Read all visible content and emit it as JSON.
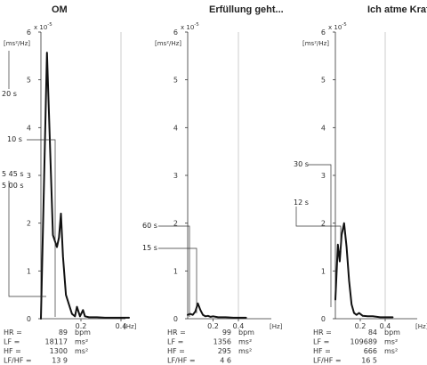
{
  "chart_data": [
    {
      "type": "line",
      "title": "OM",
      "y_exponent": "x 10",
      "y_exponent_power": "-5",
      "ylabel": "[ms²/Hz]",
      "xunit": "[Hz]",
      "ylim": [
        0,
        6
      ],
      "y_ticks": [
        "0",
        "1",
        "2",
        "3",
        "4",
        "5",
        "6"
      ],
      "x_ticks": [
        "0.2",
        "0.4"
      ],
      "series": [
        {
          "x": [
            0.0,
            0.03,
            0.06,
            0.08,
            0.09,
            0.1,
            0.11,
            0.125,
            0.14,
            0.155,
            0.17,
            0.18,
            0.195,
            0.21,
            0.22,
            0.24,
            0.28,
            0.32,
            0.36,
            0.4,
            0.44
          ],
          "y": [
            0.0,
            5.57,
            1.75,
            1.5,
            1.7,
            2.2,
            1.3,
            0.5,
            0.3,
            0.1,
            0.05,
            0.25,
            0.05,
            0.18,
            0.05,
            0.03,
            0.03,
            0.02,
            0.02,
            0.02,
            0.02
          ]
        }
      ],
      "annotations": [
        "20 s",
        "10 s",
        "5 45 s",
        "5 00 s"
      ],
      "stats": [
        {
          "label": "HR =",
          "value": "89",
          "unit": "bpm"
        },
        {
          "label": "LF =",
          "value": "18117",
          "unit": "ms²"
        },
        {
          "label": "HF =",
          "value": "1300",
          "unit": "ms²"
        },
        {
          "label": "LF/HF =",
          "value": "13 9",
          "unit": ""
        }
      ]
    },
    {
      "type": "line",
      "title": "Erfüllung geht...",
      "y_exponent": "x 10",
      "y_exponent_power": "-5",
      "ylabel": "[ms²/Hz]",
      "xunit": "[Hz]",
      "ylim": [
        0,
        6
      ],
      "y_ticks": [
        "0",
        "1",
        "2",
        "3",
        "4",
        "5",
        "6"
      ],
      "x_ticks": [
        "0.2",
        "0.4"
      ],
      "series": [
        {
          "x": [
            0.0,
            0.02,
            0.04,
            0.06,
            0.08,
            0.1,
            0.12,
            0.14,
            0.16,
            0.18,
            0.2,
            0.24,
            0.3,
            0.36,
            0.42,
            0.46
          ],
          "y": [
            0.08,
            0.1,
            0.08,
            0.15,
            0.32,
            0.18,
            0.08,
            0.05,
            0.06,
            0.04,
            0.05,
            0.03,
            0.03,
            0.02,
            0.02,
            0.02
          ]
        }
      ],
      "annotations": [
        "60 s",
        "15 s"
      ],
      "stats": [
        {
          "label": "HR =",
          "value": "99",
          "unit": "bpm"
        },
        {
          "label": "LF =",
          "value": "1356",
          "unit": "ms²"
        },
        {
          "label": "HF =",
          "value": "295",
          "unit": "ms²"
        },
        {
          "label": "LF/HF =",
          "value": "4 6",
          "unit": ""
        }
      ]
    },
    {
      "type": "line",
      "title": "Ich atme Kraft...",
      "y_exponent": "x 10",
      "y_exponent_power": "-5",
      "ylabel": "[ms²/Hz]",
      "xunit": "[Hz]",
      "ylim": [
        0,
        6
      ],
      "y_ticks": [
        "0",
        "1",
        "2",
        "3",
        "4",
        "5",
        "6"
      ],
      "x_ticks": [
        "0.2",
        "0.4"
      ],
      "series": [
        {
          "x": [
            0.0,
            0.02,
            0.035,
            0.05,
            0.07,
            0.09,
            0.11,
            0.13,
            0.15,
            0.17,
            0.19,
            0.22,
            0.26,
            0.3,
            0.36,
            0.42,
            0.46
          ],
          "y": [
            0.4,
            1.55,
            1.2,
            1.75,
            2.0,
            1.5,
            0.8,
            0.3,
            0.12,
            0.08,
            0.12,
            0.06,
            0.05,
            0.05,
            0.03,
            0.03,
            0.03
          ]
        }
      ],
      "annotations": [
        "30 s",
        "12 s"
      ],
      "stats": [
        {
          "label": "HR =",
          "value": "84",
          "unit": "bpm"
        },
        {
          "label": "LF =",
          "value": "109689",
          "unit": "ms²"
        },
        {
          "label": "HF =",
          "value": "666",
          "unit": "ms²"
        },
        {
          "label": "LF/HF =",
          "value": "16 5",
          "unit": ""
        }
      ]
    }
  ]
}
